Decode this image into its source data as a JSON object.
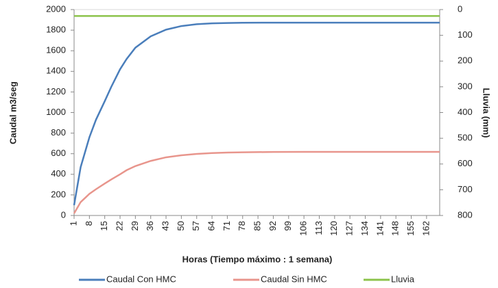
{
  "chart_data": {
    "type": "line",
    "x_label": "Horas (Tiempo máximo : 1 semana)",
    "y_label": "Caudal m3/seg",
    "y2_label": "Lluvia (mm)",
    "x": [
      1,
      4,
      8,
      11,
      15,
      18,
      22,
      25,
      29,
      36,
      43,
      50,
      57,
      64,
      71,
      78,
      92,
      106,
      120,
      134,
      148,
      162,
      168
    ],
    "xlim": [
      1,
      168
    ],
    "xticks": [
      1,
      8,
      15,
      22,
      29,
      36,
      43,
      50,
      57,
      64,
      71,
      78,
      85,
      92,
      99,
      106,
      113,
      120,
      127,
      134,
      141,
      148,
      155,
      162
    ],
    "ylim": [
      0,
      2000
    ],
    "yticks": [
      0,
      200,
      400,
      600,
      800,
      1000,
      1200,
      1400,
      1600,
      1800,
      2000
    ],
    "y2lim": [
      0,
      800
    ],
    "y2ticks": [
      0,
      100,
      200,
      300,
      400,
      500,
      600,
      700,
      800
    ],
    "y2_inverted": true,
    "grid": false,
    "legend": "bottom",
    "series": [
      {
        "name": "Caudal Con HMC",
        "color": "#4a7ebb",
        "values": [
          100,
          470,
          760,
          930,
          1110,
          1250,
          1420,
          1520,
          1630,
          1740,
          1805,
          1840,
          1858,
          1866,
          1870,
          1872,
          1873,
          1873,
          1873,
          1873,
          1873,
          1873,
          1873
        ]
      },
      {
        "name": "Caudal Sin HMC",
        "color": "#e8958c",
        "values": [
          20,
          130,
          210,
          255,
          310,
          350,
          400,
          440,
          480,
          530,
          565,
          585,
          598,
          606,
          611,
          614,
          617,
          618,
          618,
          618,
          618,
          618,
          618
        ]
      },
      {
        "name": "Lluvia",
        "color": "#8bc34a",
        "axis": "y2",
        "values": [
          25,
          25,
          25,
          25,
          25,
          25,
          25,
          25,
          25,
          25,
          25,
          25,
          25,
          25,
          25,
          25,
          25,
          25,
          25,
          25,
          25,
          25,
          25
        ]
      }
    ]
  }
}
